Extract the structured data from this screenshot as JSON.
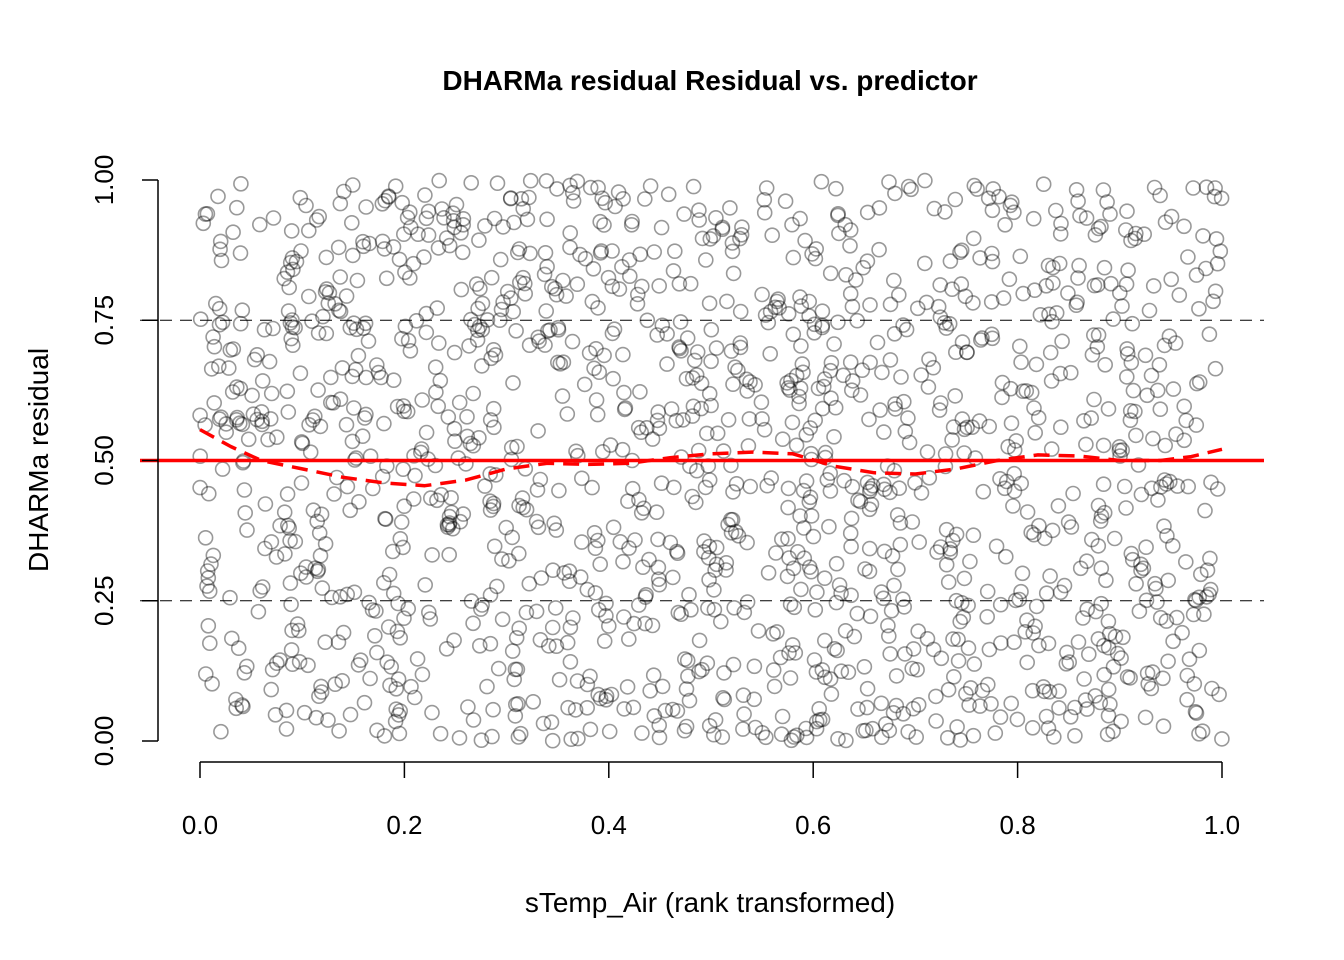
{
  "chart_data": {
    "type": "scatter",
    "title": "DHARMa residual Residual vs. predictor",
    "xlabel": "sTemp_Air (rank transformed)",
    "ylabel": "DHARMa residual",
    "xlim": [
      0.0,
      1.0
    ],
    "ylim": [
      0.0,
      1.0
    ],
    "x_ticks": [
      "0.0",
      "0.2",
      "0.4",
      "0.6",
      "0.8",
      "1.0"
    ],
    "y_ticks": [
      "0.00",
      "0.25",
      "0.50",
      "0.75",
      "1.00"
    ],
    "reference_lines": {
      "solid": {
        "y": 0.5,
        "color": "#ff0000"
      },
      "dashed": [
        0.25,
        0.75
      ]
    },
    "smooth_curve": {
      "style": "dashed",
      "color": "#ff0000",
      "x": [
        0.0,
        0.03,
        0.06,
        0.1,
        0.14,
        0.18,
        0.22,
        0.26,
        0.3,
        0.34,
        0.38,
        0.42,
        0.46,
        0.5,
        0.54,
        0.58,
        0.62,
        0.66,
        0.7,
        0.74,
        0.78,
        0.82,
        0.86,
        0.9,
        0.94,
        0.97,
        1.0
      ],
      "y": [
        0.555,
        0.525,
        0.5,
        0.485,
        0.47,
        0.46,
        0.455,
        0.465,
        0.485,
        0.495,
        0.493,
        0.495,
        0.505,
        0.512,
        0.515,
        0.512,
        0.49,
        0.478,
        0.476,
        0.485,
        0.5,
        0.51,
        0.508,
        0.5,
        0.5,
        0.507,
        0.52
      ]
    },
    "points": {
      "count": 1500,
      "distribution": "uniform",
      "color": "#000000",
      "opacity": 0.4,
      "marker": "open-circle"
    }
  }
}
